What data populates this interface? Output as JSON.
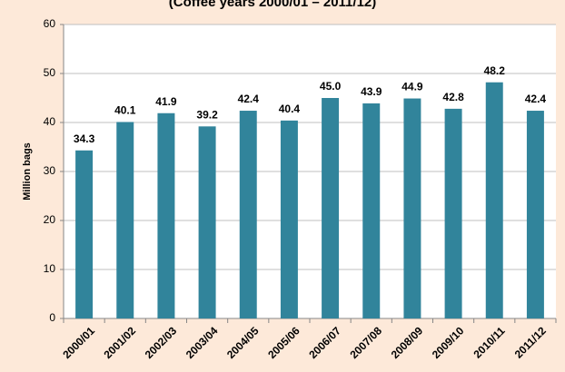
{
  "chart_data": {
    "type": "bar",
    "subtitle": "(Coffee years 2000/01 – 2011/12)",
    "y_label": "Million bags",
    "categories": [
      "2000/01",
      "2001/02",
      "2002/03",
      "2003/04",
      "2004/05",
      "2005/06",
      "2006/07",
      "2007/08",
      "2008/09",
      "2009/10",
      "2010/11",
      "2011/12"
    ],
    "values": [
      34.3,
      40.1,
      41.9,
      39.2,
      42.4,
      40.4,
      45.0,
      43.9,
      44.9,
      42.8,
      48.2,
      42.4
    ],
    "value_labels": [
      "34.3",
      "40.1",
      "41.9",
      "39.2",
      "42.4",
      "40.4",
      "45.0",
      "43.9",
      "44.9",
      "42.8",
      "48.2",
      "42.4"
    ],
    "color": "#31849b",
    "ylim": [
      0,
      60
    ],
    "yticks": [
      0,
      10,
      20,
      30,
      40,
      50,
      60
    ],
    "grid": true
  }
}
